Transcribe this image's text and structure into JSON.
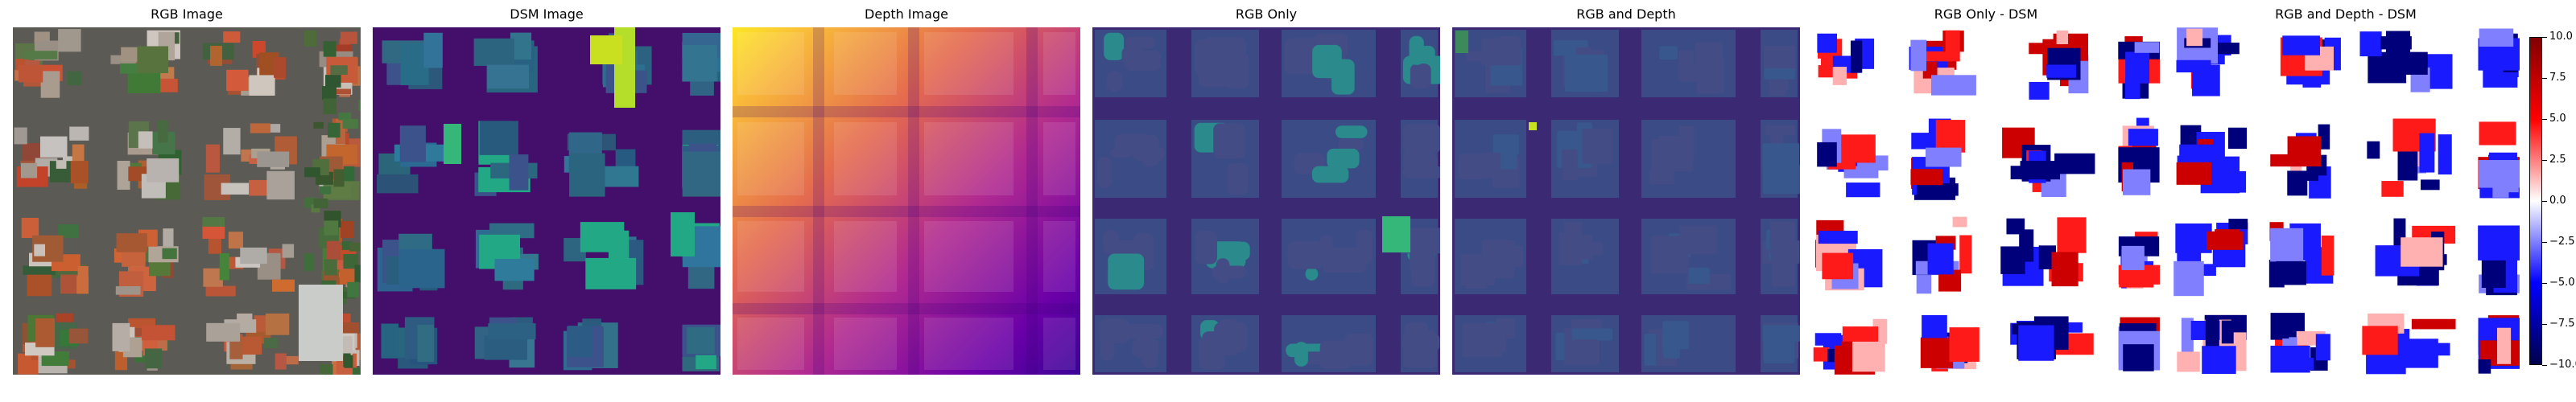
{
  "panels": [
    {
      "title": "RGB Image",
      "kind": "rgb"
    },
    {
      "title": "DSM Image",
      "kind": "dsm"
    },
    {
      "title": "Depth Image",
      "kind": "depth"
    },
    {
      "title": "RGB Only",
      "kind": "pred_rgb"
    },
    {
      "title": "RGB and Depth",
      "kind": "pred_rgbd"
    },
    {
      "title": "RGB Only - DSM",
      "kind": "diff_rgb"
    },
    {
      "title": "RGB and Depth - DSM",
      "kind": "diff_rgbd"
    }
  ],
  "colorbar": {
    "ticks": [
      "10.0",
      "7.5",
      "5.0",
      "2.5",
      "0.0",
      "−2.5",
      "−5.0",
      "−7.5",
      "−10.0"
    ],
    "tick_values": [
      10,
      7.5,
      5,
      2.5,
      0,
      -2.5,
      -5,
      -7.5,
      -10
    ],
    "min": -10,
    "max": 10,
    "colormap": "seismic"
  },
  "colors": {
    "viridis_dark": "#3b0f70",
    "viridis_mid": "#2c7f8e",
    "viridis_bright": "#c8e020",
    "plasma_dark": "#5b02a3",
    "plasma_bright": "#fccd25",
    "seismic_neg": "#00004c",
    "seismic_pos": "#800000"
  }
}
